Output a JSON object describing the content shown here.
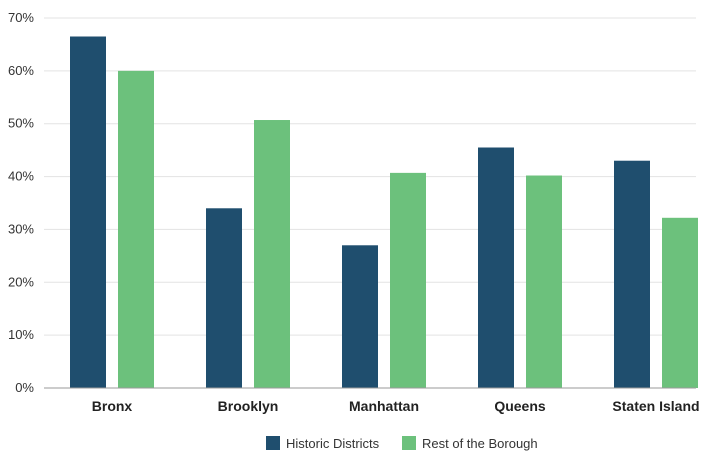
{
  "chart_data": {
    "type": "bar",
    "title": "",
    "xlabel": "",
    "ylabel": "",
    "categories": [
      "Bronx",
      "Brooklyn",
      "Manhattan",
      "Queens",
      "Staten Island"
    ],
    "series": [
      {
        "name": "Historic Districts",
        "color": "#1f4e6e",
        "values": [
          66.5,
          34,
          27,
          45.5,
          43
        ]
      },
      {
        "name": "Rest of the Borough",
        "color": "#6cc17c",
        "values": [
          60,
          50.7,
          40.7,
          40.2,
          32.2
        ]
      }
    ],
    "ylim": [
      0,
      70
    ],
    "yticks": [
      0,
      10,
      20,
      30,
      40,
      50,
      60,
      70
    ],
    "ytick_format": "percent",
    "grid": true,
    "legend_position": "bottom-center"
  }
}
